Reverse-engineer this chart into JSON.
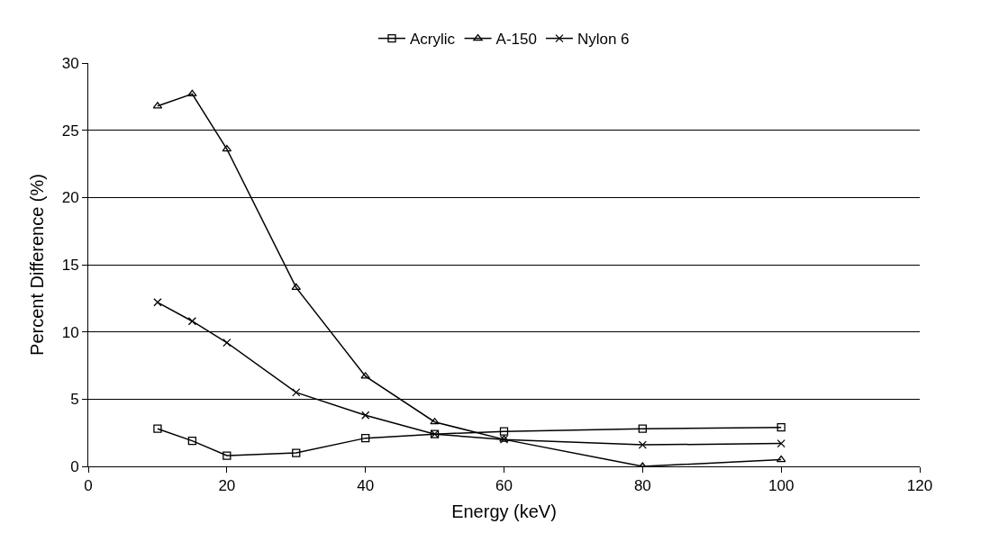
{
  "chart_data": {
    "type": "line",
    "xlabel": "Energy (keV)",
    "ylabel": "Percent Difference (%)",
    "x": [
      10,
      15,
      20,
      30,
      40,
      50,
      60,
      80,
      100
    ],
    "series": [
      {
        "name": "Acrylic",
        "color": "#000000",
        "marker": "square",
        "values": [
          2.8,
          1.9,
          0.8,
          1.0,
          2.1,
          2.4,
          2.6,
          2.8,
          2.9
        ]
      },
      {
        "name": "A-150",
        "color": "#000000",
        "marker": "triangle",
        "values": [
          26.8,
          27.7,
          23.6,
          13.3,
          6.7,
          3.3,
          2.0,
          0.0,
          0.5
        ]
      },
      {
        "name": "Nylon 6",
        "color": "#000000",
        "marker": "cross",
        "values": [
          12.2,
          10.8,
          9.2,
          5.5,
          3.8,
          2.4,
          2.0,
          1.6,
          1.7
        ]
      }
    ],
    "xlim": [
      0,
      120
    ],
    "xticks": [
      0,
      20,
      40,
      60,
      80,
      100,
      120
    ],
    "ylim": [
      0,
      30
    ],
    "yticks": [
      0,
      5,
      10,
      15,
      20,
      25,
      30
    ],
    "grid": "y",
    "legend": "top",
    "line_style": "solid"
  }
}
